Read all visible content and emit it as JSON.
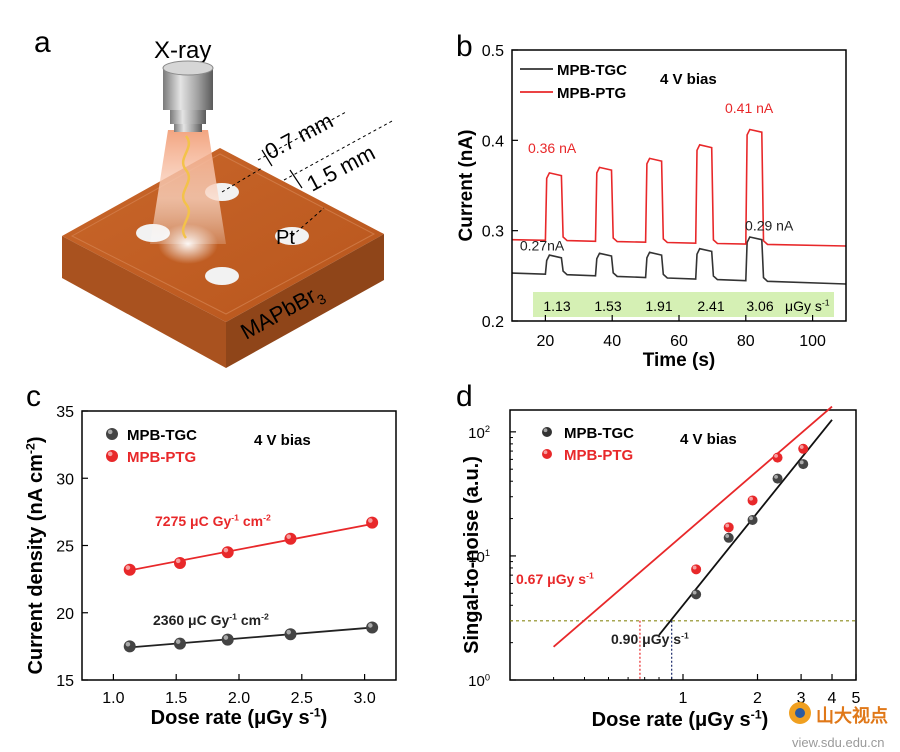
{
  "panels": {
    "a": {
      "letter": "a",
      "source_label": "X-ray",
      "dim_inner": "0.7 mm",
      "dim_outer": "1.5 mm",
      "electrode_label": "Pt",
      "crystal_label": "MAPbBr",
      "crystal_subscript": "3"
    }
  },
  "chart_data": [
    {
      "panel": "b",
      "type": "line",
      "letter": "b",
      "xlabel": "Time (s)",
      "ylabel": "Current (nA)",
      "xlim": [
        10,
        110
      ],
      "ylim": [
        0.2,
        0.5
      ],
      "xticks": [
        20,
        40,
        60,
        80,
        100
      ],
      "yticks": [
        0.2,
        0.3,
        0.4,
        0.5
      ],
      "annotation": "4 V bias",
      "legend": [
        {
          "name": "MPB-TGC",
          "color": "#333333"
        },
        {
          "name": "MPB-PTG",
          "color": "#e8282a"
        }
      ],
      "series": [
        {
          "name": "MPB-TGC",
          "color": "#333333",
          "base_start": 0.253,
          "base_end": 0.241,
          "pulses": [
            {
              "t0": 20,
              "t1": 25,
              "peak": 0.273
            },
            {
              "t0": 35,
              "t1": 40,
              "peak": 0.275
            },
            {
              "t0": 50,
              "t1": 55,
              "peak": 0.276
            },
            {
              "t0": 65,
              "t1": 70,
              "peak": 0.28
            },
            {
              "t0": 80,
              "t1": 85,
              "peak": 0.293
            }
          ]
        },
        {
          "name": "MPB-PTG",
          "color": "#e8282a",
          "base_start": 0.29,
          "base_end": 0.283,
          "pulses": [
            {
              "t0": 20,
              "t1": 25,
              "peak": 0.364
            },
            {
              "t0": 35,
              "t1": 40,
              "peak": 0.37
            },
            {
              "t0": 50,
              "t1": 55,
              "peak": 0.38
            },
            {
              "t0": 65,
              "t1": 70,
              "peak": 0.395
            },
            {
              "t0": 80,
              "t1": 85,
              "peak": 0.412
            }
          ]
        }
      ],
      "peak_labels": [
        {
          "text": "0.36 nA",
          "color": "#e8282a",
          "x": 22,
          "y": 0.386
        },
        {
          "text": "0.41 nA",
          "color": "#e8282a",
          "x": 81,
          "y": 0.43
        },
        {
          "text": "0.27nA",
          "color": "#222222",
          "x": 19,
          "y": 0.278
        },
        {
          "text": "0.29 nA",
          "color": "#222222",
          "x": 87,
          "y": 0.3
        }
      ],
      "dose_rates": [
        "1.13",
        "1.53",
        "1.91",
        "2.41",
        "3.06"
      ],
      "dose_unit": "μGy s",
      "dose_unit_sup": "-1"
    },
    {
      "panel": "c",
      "type": "scatter",
      "letter": "c",
      "xlabel": "Dose rate (μGy s",
      "xlabel_sup": "-1",
      "xlabel_end": ")",
      "ylabel": "Current density (nA cm",
      "ylabel_sup": "-2",
      "ylabel_end": ")",
      "xlim": [
        0.75,
        3.25
      ],
      "ylim": [
        15,
        35
      ],
      "xticks": [
        "1.0",
        "1.5",
        "2.0",
        "2.5",
        "3.0"
      ],
      "yticks": [
        "15",
        "20",
        "25",
        "30",
        "35"
      ],
      "annotation": "4 V bias",
      "legend": [
        {
          "name": "MPB-TGC",
          "color": "#444444"
        },
        {
          "name": "MPB-PTG",
          "color": "#e8282a"
        }
      ],
      "series": [
        {
          "name": "MPB-TGC",
          "color": "#444444",
          "x": [
            1.13,
            1.53,
            1.91,
            2.41,
            3.06
          ],
          "y": [
            17.5,
            17.7,
            18.0,
            18.4,
            18.9
          ]
        },
        {
          "name": "MPB-PTG",
          "color": "#e8282a",
          "x": [
            1.13,
            1.53,
            1.91,
            2.41,
            3.06
          ],
          "y": [
            23.2,
            23.7,
            24.5,
            25.5,
            26.7
          ]
        }
      ],
      "fits": [
        {
          "color": "#222222",
          "x": [
            1.1,
            3.06
          ],
          "y": [
            17.4,
            18.9
          ]
        },
        {
          "color": "#e8282a",
          "x": [
            1.1,
            3.06
          ],
          "y": [
            23.1,
            26.6
          ]
        }
      ],
      "sensitivity_labels": [
        {
          "value": "7275 μC Gy",
          "sup": "-1",
          "unit": " cm",
          "unit_sup": "-2",
          "color": "#e8282a"
        },
        {
          "value": "2360 μC Gy",
          "sup": "-1",
          "unit": " cm",
          "unit_sup": "-2",
          "color": "#222222"
        }
      ]
    },
    {
      "panel": "d",
      "type": "scatter",
      "letter": "d",
      "xscale": "log",
      "yscale": "log",
      "xlabel": "Dose rate (μGy s",
      "xlabel_sup": "-1",
      "xlabel_end": ")",
      "ylabel": "Singal-to-noise (a.u.)",
      "xlim": [
        0.2,
        5
      ],
      "ylim": [
        1,
        150
      ],
      "xticks": [
        "1",
        "2",
        "3",
        "4",
        "5"
      ],
      "yticks": [
        {
          "base": "10",
          "exp": "0"
        },
        {
          "base": "10",
          "exp": "1"
        },
        {
          "base": "10",
          "exp": "2"
        }
      ],
      "annotation": "4 V bias",
      "legend": [
        {
          "name": "MPB-TGC",
          "color": "#333333"
        },
        {
          "name": "MPB-PTG",
          "color": "#e8282a"
        }
      ],
      "series": [
        {
          "name": "MPB-TGC",
          "color": "#444444",
          "x": [
            1.13,
            1.53,
            1.91,
            2.41,
            3.06
          ],
          "y": [
            4.9,
            14,
            19.5,
            42,
            55
          ]
        },
        {
          "name": "MPB-PTG",
          "color": "#e8282a",
          "x": [
            1.13,
            1.53,
            1.91,
            2.41,
            3.06
          ],
          "y": [
            7.8,
            17,
            28,
            62,
            73
          ]
        }
      ],
      "fits": [
        {
          "color": "#111111",
          "x": [
            0.8,
            4.0
          ],
          "y": [
            2.3,
            125
          ]
        },
        {
          "color": "#e8282a",
          "x": [
            0.3,
            4.0
          ],
          "y": [
            1.85,
            160
          ]
        }
      ],
      "threshold": 3,
      "threshold_color": "#8a8a1a",
      "lod_labels": [
        {
          "value": "0.67 μGy s",
          "sup": "-1",
          "color": "#e8282a"
        },
        {
          "value": "0.90 μGy s",
          "sup": "-1",
          "color": "#222222"
        }
      ],
      "lod_x": [
        0.67,
        0.9
      ]
    }
  ],
  "watermark": {
    "text": "山大视点",
    "url_text": "view.sdu.edu.cn"
  }
}
